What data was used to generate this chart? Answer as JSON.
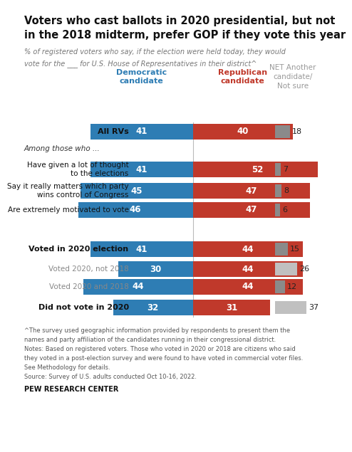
{
  "title_line1": "Voters who cast ballots in 2020 presidential, but not",
  "title_line2": "in the 2018 midterm, prefer GOP if they vote this year",
  "subtitle_line1": "% of registered voters who say, if the election were held today, they would",
  "subtitle_line2": "vote for the ___ for U.S. House of Representatives in their district^",
  "col_header_dem": "Democratic\ncandidate",
  "col_header_rep": "Republican\ncandidate",
  "col_header_net": "NET Another\ncandidate/\nNot sure",
  "section1_label": "Among those who ...",
  "categories": [
    "All RVs",
    "Have given a lot of thought\nto the elections",
    "Say it really matters which party\nwins control of Congress",
    "Are extremely motivated to vote",
    "Voted in 2020 election",
    "Voted 2020, not 2018",
    "Voted 2020 and 2018",
    "Did not vote in 2020"
  ],
  "dem_values": [
    41,
    41,
    45,
    46,
    41,
    30,
    44,
    32
  ],
  "rep_values": [
    40,
    52,
    47,
    47,
    44,
    44,
    44,
    31
  ],
  "net_values": [
    18,
    7,
    8,
    6,
    15,
    26,
    12,
    37
  ],
  "label_bold": [
    true,
    false,
    false,
    false,
    true,
    false,
    false,
    true
  ],
  "label_gray": [
    false,
    false,
    false,
    false,
    false,
    true,
    true,
    false
  ],
  "dem_color": "#2e7db4",
  "rep_color": "#c0392b",
  "net_color_small": "#8a8a8a",
  "net_color_large": "#c0c0c0",
  "net_large_threshold": 20,
  "footnote_lines": [
    "^The survey used geographic information provided by respondents to present them the",
    "names and party affiliation of the candidates running in their congressional district.",
    "Notes: Based on registered voters. Those who voted in 2020 or 2018 are citizens who said",
    "they voted in a post-election survey and were found to have voted in commercial voter files.",
    "See Methodology for details.",
    "Source: Survey of U.S. adults conducted Oct 10-16, 2022."
  ],
  "source_bold": "PEW RESEARCH CENTER",
  "background_color": "#ffffff",
  "title_color": "#111111",
  "subtitle_color": "#777777",
  "footnote_color": "#555555"
}
